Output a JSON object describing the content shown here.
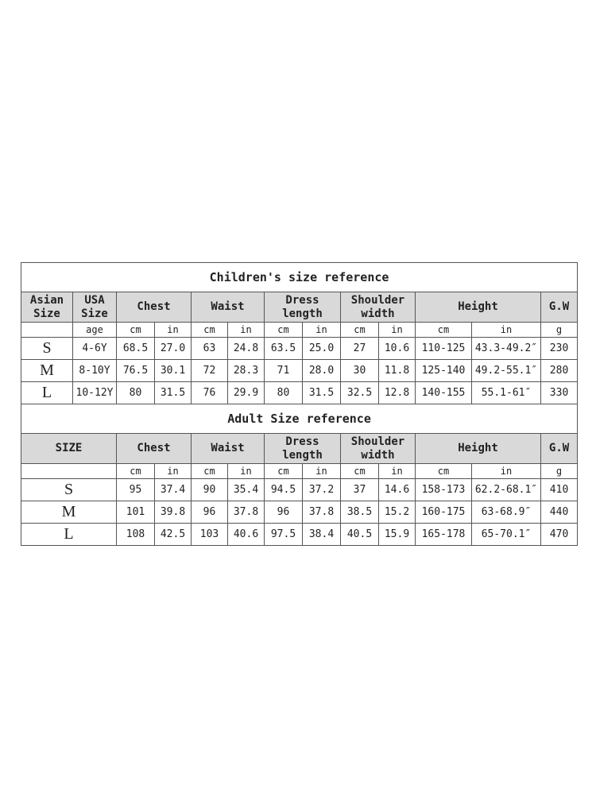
{
  "children": {
    "title": "Children's size reference",
    "headers": [
      "Asian Size",
      "USA Size",
      "Chest",
      "Waist",
      "Dress length",
      "Shoulder width",
      "Height",
      "G.W"
    ],
    "units": [
      "",
      "age",
      "cm",
      "in",
      "cm",
      "in",
      "cm",
      "in",
      "cm",
      "in",
      "cm",
      "in",
      "g"
    ],
    "rows": [
      [
        "S",
        "4-6Y",
        "68.5",
        "27.0",
        "63",
        "24.8",
        "63.5",
        "25.0",
        "27",
        "10.6",
        "110-125",
        "43.3-49.2″",
        "230"
      ],
      [
        "M",
        "8-10Y",
        "76.5",
        "30.1",
        "72",
        "28.3",
        "71",
        "28.0",
        "30",
        "11.8",
        "125-140",
        "49.2-55.1″",
        "280"
      ],
      [
        "L",
        "10-12Y",
        "80",
        "31.5",
        "76",
        "29.9",
        "80",
        "31.5",
        "32.5",
        "12.8",
        "140-155",
        "55.1-61″",
        "330"
      ]
    ]
  },
  "adult": {
    "title": "Adult Size reference",
    "headers": [
      "SIZE",
      "Chest",
      "Waist",
      "Dress length",
      "Shoulder width",
      "Height",
      "G.W"
    ],
    "units": [
      "",
      "cm",
      "in",
      "cm",
      "in",
      "cm",
      "in",
      "cm",
      "in",
      "cm",
      "in",
      "g"
    ],
    "rows": [
      [
        "S",
        "95",
        "37.4",
        "90",
        "35.4",
        "94.5",
        "37.2",
        "37",
        "14.6",
        "158-173",
        "62.2-68.1″",
        "410"
      ],
      [
        "M",
        "101",
        "39.8",
        "96",
        "37.8",
        "96",
        "37.8",
        "38.5",
        "15.2",
        "160-175",
        "63-68.9″",
        "440"
      ],
      [
        "L",
        "108",
        "42.5",
        "103",
        "40.6",
        "97.5",
        "38.4",
        "40.5",
        "15.9",
        "165-178",
        "65-70.1″",
        "470"
      ]
    ]
  }
}
